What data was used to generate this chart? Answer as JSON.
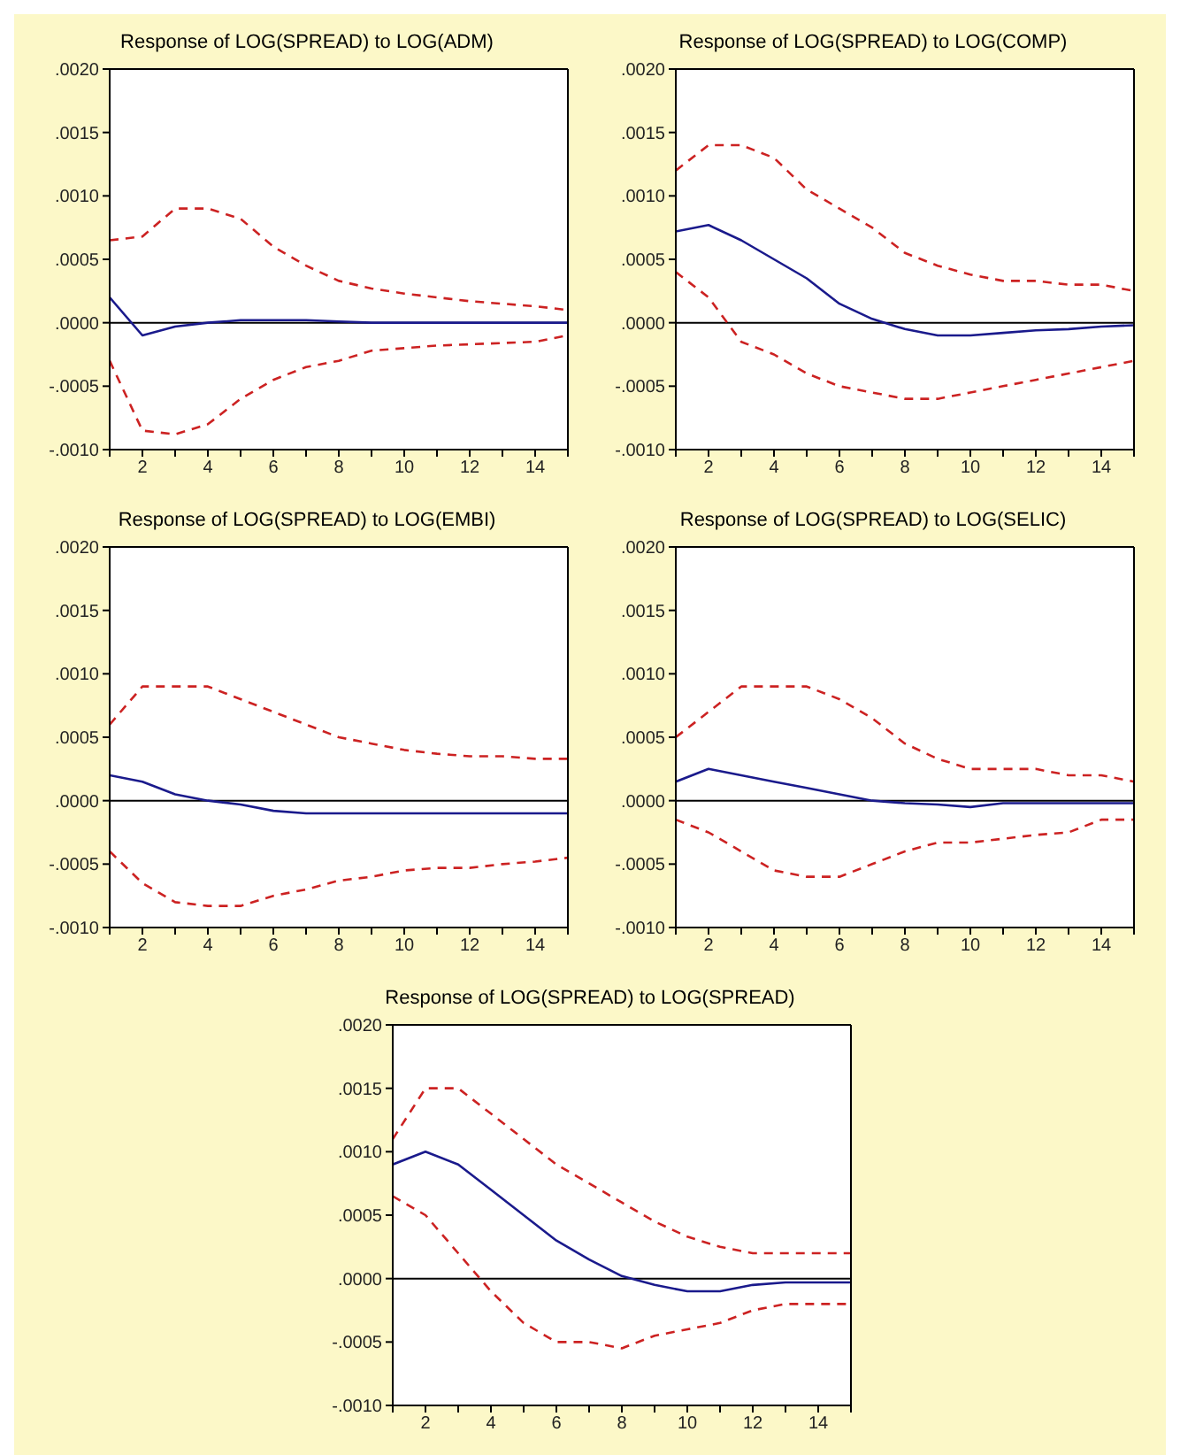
{
  "chart_data": [
    {
      "type": "line",
      "title": "Response of LOG(SPREAD) to LOG(ADM)",
      "x": [
        1,
        2,
        3,
        4,
        5,
        6,
        7,
        8,
        9,
        10,
        11,
        12,
        13,
        14,
        15
      ],
      "xlim": [
        1,
        15
      ],
      "xticks": [
        {
          "value": 1,
          "label": null
        },
        2,
        {
          "value": 3,
          "label": null
        },
        4,
        {
          "value": 5,
          "label": null
        },
        6,
        {
          "value": 7,
          "label": null
        },
        8,
        {
          "value": 9,
          "label": null
        },
        10,
        {
          "value": 11,
          "label": null
        },
        12,
        {
          "value": 13,
          "label": null
        },
        14,
        {
          "value": 15,
          "label": null
        }
      ],
      "ylim": [
        -0.001,
        0.002
      ],
      "yticks": [
        {
          "value": -0.001,
          "label": "-.0010"
        },
        {
          "value": -0.0005,
          "label": "-.0005"
        },
        {
          "value": 0,
          "label": ".0000"
        },
        {
          "value": 0.0005,
          "label": ".0005"
        },
        {
          "value": 0.001,
          "label": ".0010"
        },
        {
          "value": 0.0015,
          "label": ".0015"
        },
        {
          "value": 0.002,
          "label": ".0020"
        }
      ],
      "grid": false,
      "legend": false,
      "ref_lines": [
        {
          "axis": "y",
          "value": 0,
          "color": "#000000"
        }
      ],
      "series": [
        {
          "color": "#1a1a8c",
          "line_style": "solid",
          "values": [
            0.0002,
            -0.0001,
            -3e-05,
            0,
            2e-05,
            2e-05,
            2e-05,
            1e-05,
            0,
            0,
            0,
            0,
            0,
            0,
            0
          ]
        },
        {
          "color": "#cc2222",
          "line_style": "dashed",
          "values": [
            0.00065,
            0.00068,
            0.0009,
            0.0009,
            0.00082,
            0.0006,
            0.00045,
            0.00033,
            0.00027,
            0.00023,
            0.0002,
            0.00017,
            0.00015,
            0.00013,
            0.0001
          ]
        },
        {
          "color": "#cc2222",
          "line_style": "dashed",
          "values": [
            -0.0003,
            -0.00085,
            -0.00088,
            -0.0008,
            -0.0006,
            -0.00045,
            -0.00035,
            -0.0003,
            -0.00022,
            -0.0002,
            -0.00018,
            -0.00017,
            -0.00016,
            -0.00015,
            -0.0001
          ]
        }
      ]
    },
    {
      "type": "line",
      "title": "Response of LOG(SPREAD) to LOG(COMP)",
      "x": [
        1,
        2,
        3,
        4,
        5,
        6,
        7,
        8,
        9,
        10,
        11,
        12,
        13,
        14,
        15
      ],
      "xlim": [
        1,
        15
      ],
      "xticks": [
        {
          "value": 1,
          "label": null
        },
        2,
        {
          "value": 3,
          "label": null
        },
        4,
        {
          "value": 5,
          "label": null
        },
        6,
        {
          "value": 7,
          "label": null
        },
        8,
        {
          "value": 9,
          "label": null
        },
        10,
        {
          "value": 11,
          "label": null
        },
        12,
        {
          "value": 13,
          "label": null
        },
        14,
        {
          "value": 15,
          "label": null
        }
      ],
      "ylim": [
        -0.001,
        0.002
      ],
      "yticks": [
        {
          "value": -0.001,
          "label": "-.0010"
        },
        {
          "value": -0.0005,
          "label": "-.0005"
        },
        {
          "value": 0,
          "label": ".0000"
        },
        {
          "value": 0.0005,
          "label": ".0005"
        },
        {
          "value": 0.001,
          "label": ".0010"
        },
        {
          "value": 0.0015,
          "label": ".0015"
        },
        {
          "value": 0.002,
          "label": ".0020"
        }
      ],
      "grid": false,
      "legend": false,
      "ref_lines": [
        {
          "axis": "y",
          "value": 0,
          "color": "#000000"
        }
      ],
      "series": [
        {
          "color": "#1a1a8c",
          "line_style": "solid",
          "values": [
            0.00072,
            0.00077,
            0.00065,
            0.0005,
            0.00035,
            0.00015,
            3e-05,
            -5e-05,
            -0.0001,
            -0.0001,
            -8e-05,
            -6e-05,
            -5e-05,
            -3e-05,
            -2e-05
          ]
        },
        {
          "color": "#cc2222",
          "line_style": "dashed",
          "values": [
            0.0012,
            0.0014,
            0.0014,
            0.0013,
            0.00105,
            0.0009,
            0.00075,
            0.00055,
            0.00045,
            0.00038,
            0.00033,
            0.00033,
            0.0003,
            0.0003,
            0.00025
          ]
        },
        {
          "color": "#cc2222",
          "line_style": "dashed",
          "values": [
            0.0004,
            0.0002,
            -0.00015,
            -0.00025,
            -0.0004,
            -0.0005,
            -0.00055,
            -0.0006,
            -0.0006,
            -0.00055,
            -0.0005,
            -0.00045,
            -0.0004,
            -0.00035,
            -0.0003
          ]
        }
      ]
    },
    {
      "type": "line",
      "title": "Response of LOG(SPREAD) to LOG(EMBI)",
      "x": [
        1,
        2,
        3,
        4,
        5,
        6,
        7,
        8,
        9,
        10,
        11,
        12,
        13,
        14,
        15
      ],
      "xlim": [
        1,
        15
      ],
      "xticks": [
        {
          "value": 1,
          "label": null
        },
        2,
        {
          "value": 3,
          "label": null
        },
        4,
        {
          "value": 5,
          "label": null
        },
        6,
        {
          "value": 7,
          "label": null
        },
        8,
        {
          "value": 9,
          "label": null
        },
        10,
        {
          "value": 11,
          "label": null
        },
        12,
        {
          "value": 13,
          "label": null
        },
        14,
        {
          "value": 15,
          "label": null
        }
      ],
      "ylim": [
        -0.001,
        0.002
      ],
      "yticks": [
        {
          "value": -0.001,
          "label": "-.0010"
        },
        {
          "value": -0.0005,
          "label": "-.0005"
        },
        {
          "value": 0,
          "label": ".0000"
        },
        {
          "value": 0.0005,
          "label": ".0005"
        },
        {
          "value": 0.001,
          "label": ".0010"
        },
        {
          "value": 0.0015,
          "label": ".0015"
        },
        {
          "value": 0.002,
          "label": ".0020"
        }
      ],
      "grid": false,
      "legend": false,
      "ref_lines": [
        {
          "axis": "y",
          "value": 0,
          "color": "#000000"
        }
      ],
      "series": [
        {
          "color": "#1a1a8c",
          "line_style": "solid",
          "values": [
            0.0002,
            0.00015,
            5e-05,
            0,
            -3e-05,
            -8e-05,
            -0.0001,
            -0.0001,
            -0.0001,
            -0.0001,
            -0.0001,
            -0.0001,
            -0.0001,
            -0.0001,
            -0.0001
          ]
        },
        {
          "color": "#cc2222",
          "line_style": "dashed",
          "values": [
            0.0006,
            0.0009,
            0.0009,
            0.0009,
            0.0008,
            0.0007,
            0.0006,
            0.0005,
            0.00045,
            0.0004,
            0.00037,
            0.00035,
            0.00035,
            0.00033,
            0.00033
          ]
        },
        {
          "color": "#cc2222",
          "line_style": "dashed",
          "values": [
            -0.0004,
            -0.00065,
            -0.0008,
            -0.00083,
            -0.00083,
            -0.00075,
            -0.0007,
            -0.00063,
            -0.0006,
            -0.00055,
            -0.00053,
            -0.00053,
            -0.0005,
            -0.00048,
            -0.00045
          ]
        }
      ]
    },
    {
      "type": "line",
      "title": "Response of LOG(SPREAD) to LOG(SELIC)",
      "x": [
        1,
        2,
        3,
        4,
        5,
        6,
        7,
        8,
        9,
        10,
        11,
        12,
        13,
        14,
        15
      ],
      "xlim": [
        1,
        15
      ],
      "xticks": [
        {
          "value": 1,
          "label": null
        },
        2,
        {
          "value": 3,
          "label": null
        },
        4,
        {
          "value": 5,
          "label": null
        },
        6,
        {
          "value": 7,
          "label": null
        },
        8,
        {
          "value": 9,
          "label": null
        },
        10,
        {
          "value": 11,
          "label": null
        },
        12,
        {
          "value": 13,
          "label": null
        },
        14,
        {
          "value": 15,
          "label": null
        }
      ],
      "ylim": [
        -0.001,
        0.002
      ],
      "yticks": [
        {
          "value": -0.001,
          "label": "-.0010"
        },
        {
          "value": -0.0005,
          "label": "-.0005"
        },
        {
          "value": 0,
          "label": ".0000"
        },
        {
          "value": 0.0005,
          "label": ".0005"
        },
        {
          "value": 0.001,
          "label": ".0010"
        },
        {
          "value": 0.0015,
          "label": ".0015"
        },
        {
          "value": 0.002,
          "label": ".0020"
        }
      ],
      "grid": false,
      "legend": false,
      "ref_lines": [
        {
          "axis": "y",
          "value": 0,
          "color": "#000000"
        }
      ],
      "series": [
        {
          "color": "#1a1a8c",
          "line_style": "solid",
          "values": [
            0.00015,
            0.00025,
            0.0002,
            0.00015,
            0.0001,
            5e-05,
            0,
            -2e-05,
            -3e-05,
            -5e-05,
            -2e-05,
            -2e-05,
            -2e-05,
            -2e-05,
            -2e-05
          ]
        },
        {
          "color": "#cc2222",
          "line_style": "dashed",
          "values": [
            0.0005,
            0.0007,
            0.0009,
            0.0009,
            0.0009,
            0.0008,
            0.00065,
            0.00045,
            0.00033,
            0.00025,
            0.00025,
            0.00025,
            0.0002,
            0.0002,
            0.00015
          ]
        },
        {
          "color": "#cc2222",
          "line_style": "dashed",
          "values": [
            -0.00015,
            -0.00025,
            -0.0004,
            -0.00055,
            -0.0006,
            -0.0006,
            -0.0005,
            -0.0004,
            -0.00033,
            -0.00033,
            -0.0003,
            -0.00027,
            -0.00025,
            -0.00015,
            -0.00015
          ]
        }
      ]
    },
    {
      "type": "line",
      "title": "Response of LOG(SPREAD) to LOG(SPREAD)",
      "x": [
        1,
        2,
        3,
        4,
        5,
        6,
        7,
        8,
        9,
        10,
        11,
        12,
        13,
        14,
        15
      ],
      "xlim": [
        1,
        15
      ],
      "xticks": [
        {
          "value": 1,
          "label": null
        },
        2,
        {
          "value": 3,
          "label": null
        },
        4,
        {
          "value": 5,
          "label": null
        },
        6,
        {
          "value": 7,
          "label": null
        },
        8,
        {
          "value": 9,
          "label": null
        },
        10,
        {
          "value": 11,
          "label": null
        },
        12,
        {
          "value": 13,
          "label": null
        },
        14,
        {
          "value": 15,
          "label": null
        }
      ],
      "ylim": [
        -0.001,
        0.002
      ],
      "yticks": [
        {
          "value": -0.001,
          "label": "-.0010"
        },
        {
          "value": -0.0005,
          "label": "-.0005"
        },
        {
          "value": 0,
          "label": ".0000"
        },
        {
          "value": 0.0005,
          "label": ".0005"
        },
        {
          "value": 0.001,
          "label": ".0010"
        },
        {
          "value": 0.0015,
          "label": ".0015"
        },
        {
          "value": 0.002,
          "label": ".0020"
        }
      ],
      "grid": false,
      "legend": false,
      "ref_lines": [
        {
          "axis": "y",
          "value": 0,
          "color": "#000000"
        }
      ],
      "series": [
        {
          "color": "#1a1a8c",
          "line_style": "solid",
          "values": [
            0.0009,
            0.001,
            0.0009,
            0.0007,
            0.0005,
            0.0003,
            0.00015,
            2e-05,
            -5e-05,
            -0.0001,
            -0.0001,
            -5e-05,
            -3e-05,
            -3e-05,
            -3e-05
          ]
        },
        {
          "color": "#cc2222",
          "line_style": "dashed",
          "values": [
            0.0011,
            0.0015,
            0.0015,
            0.0013,
            0.0011,
            0.0009,
            0.00075,
            0.0006,
            0.00045,
            0.00033,
            0.00025,
            0.0002,
            0.0002,
            0.0002,
            0.0002
          ]
        },
        {
          "color": "#cc2222",
          "line_style": "dashed",
          "values": [
            0.00065,
            0.0005,
            0.0002,
            -0.0001,
            -0.00035,
            -0.0005,
            -0.0005,
            -0.00055,
            -0.00045,
            -0.0004,
            -0.00035,
            -0.00025,
            -0.0002,
            -0.0002,
            -0.0002
          ]
        }
      ]
    }
  ]
}
